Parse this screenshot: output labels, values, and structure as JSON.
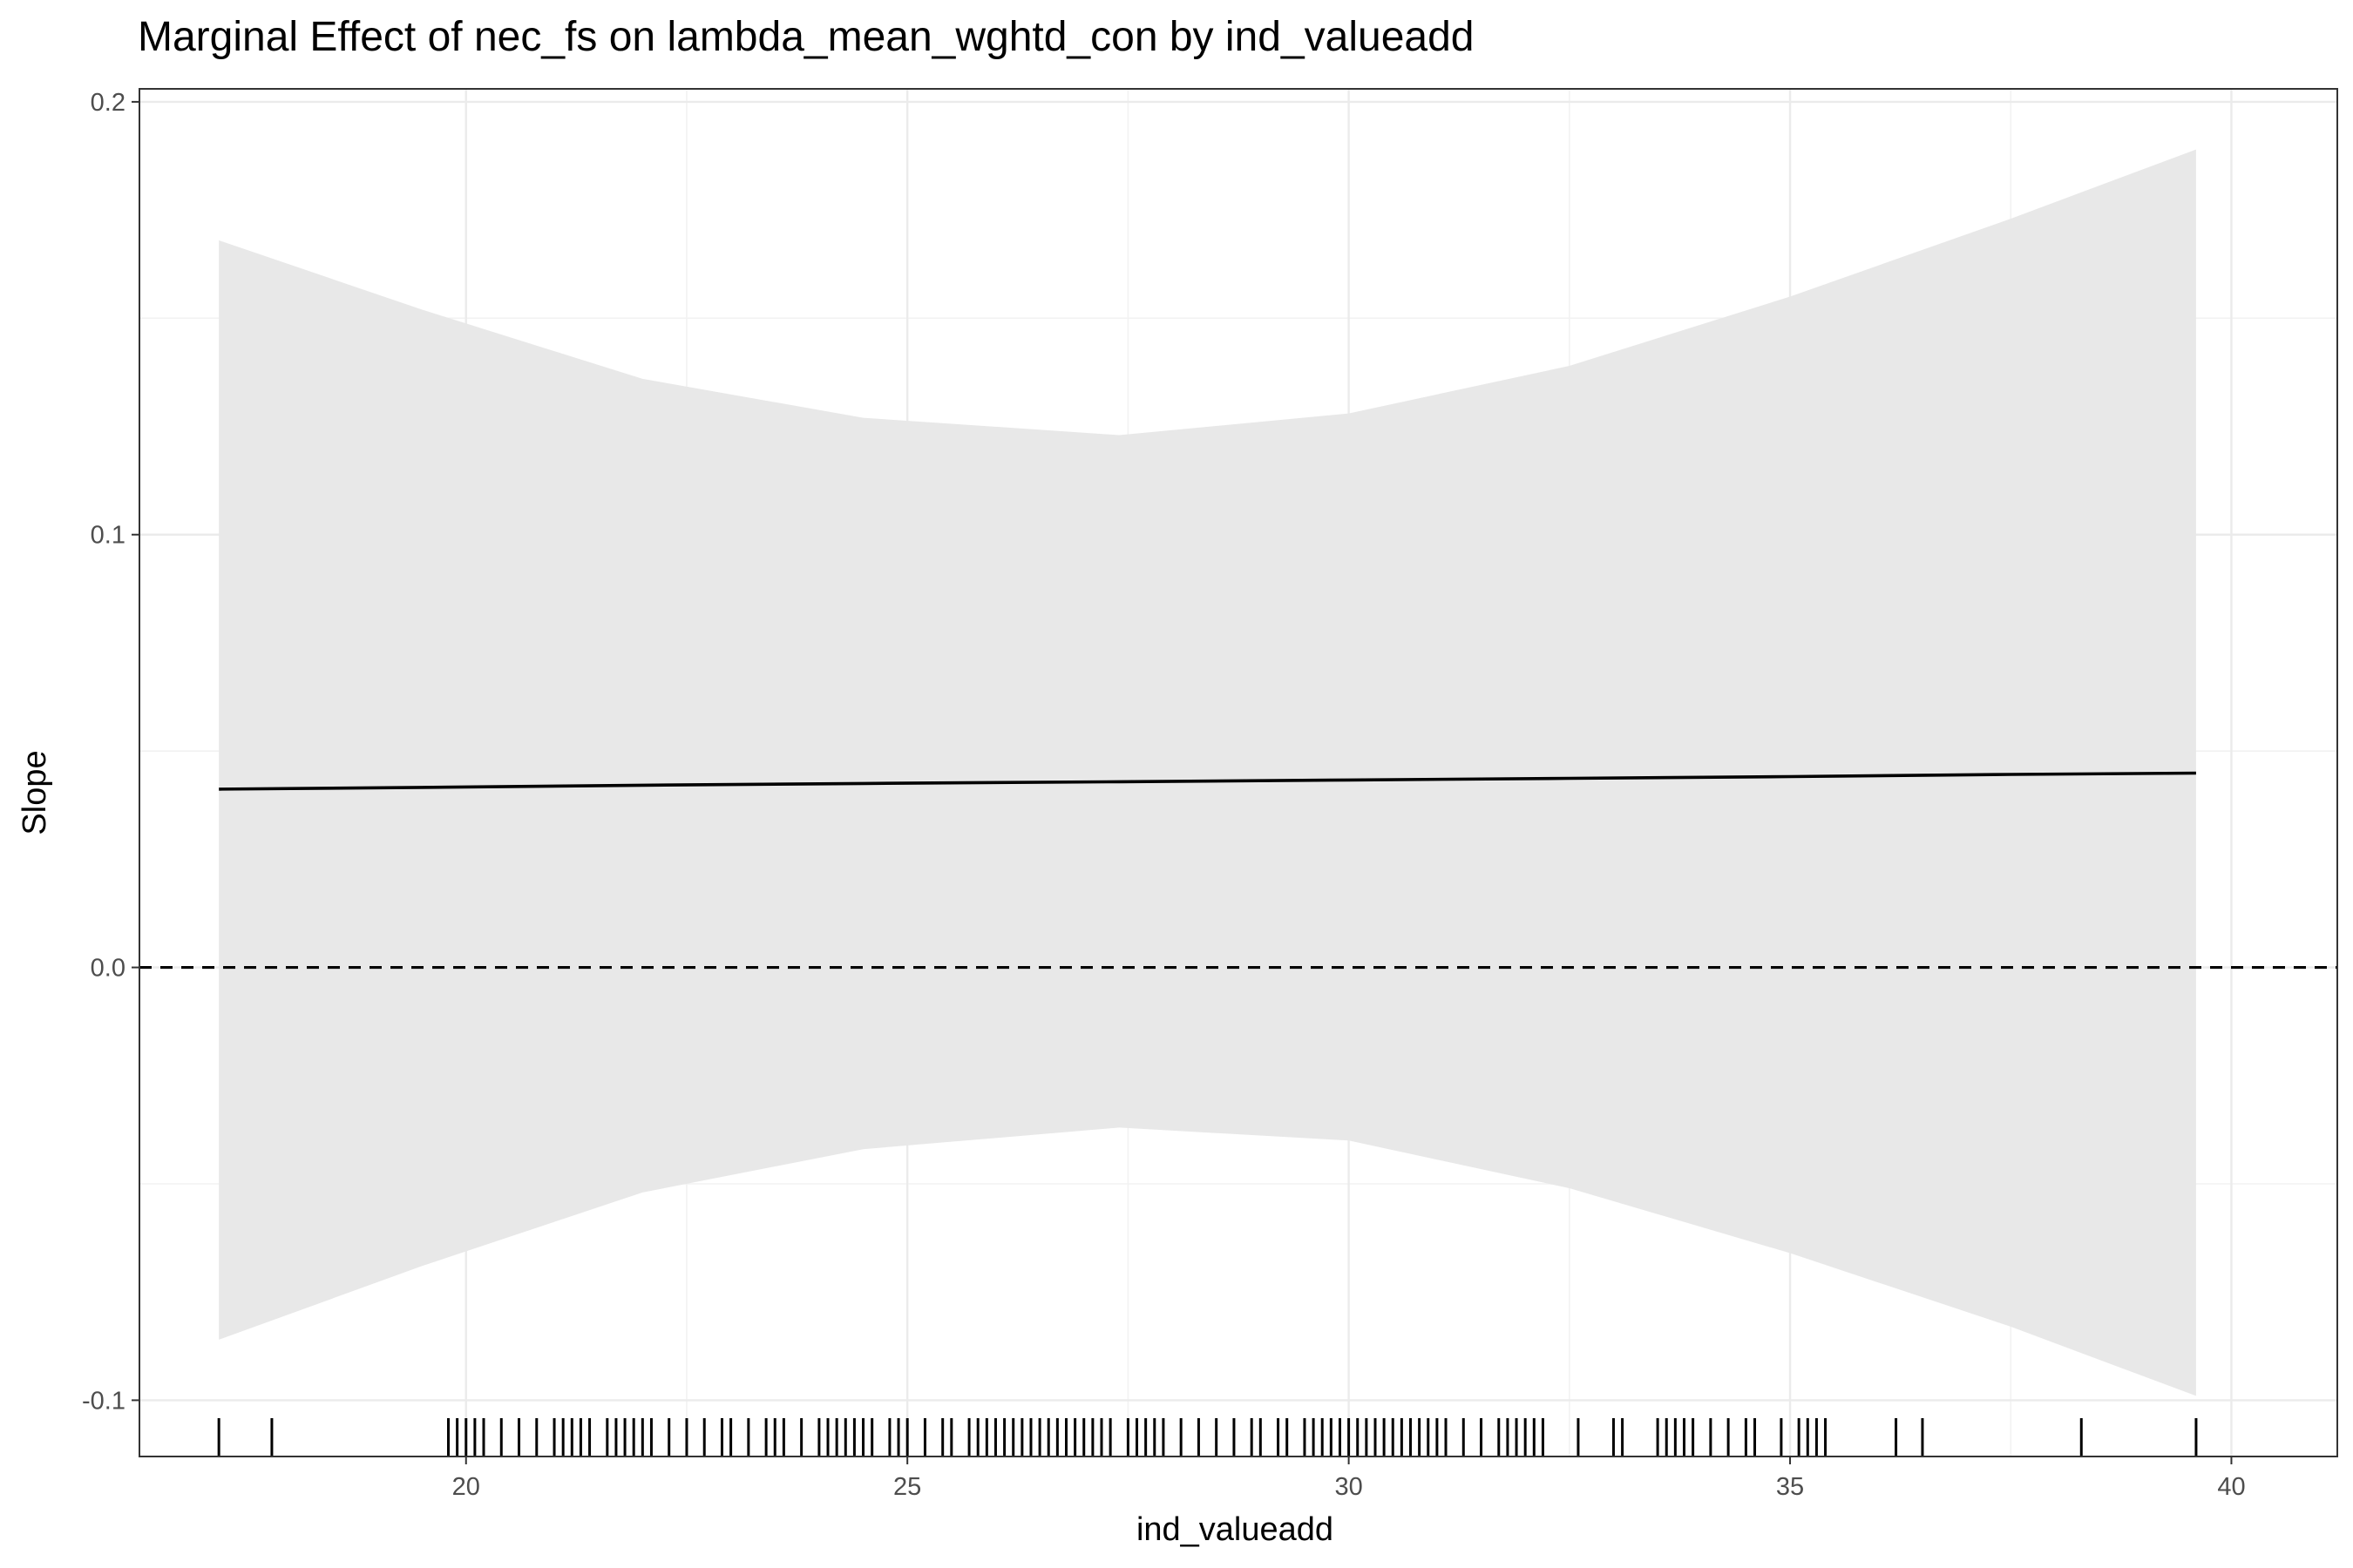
{
  "chart_data": {
    "type": "line",
    "title": "Marginal Effect of nec_fs on lambda_mean_wghtd_con by ind_valueadd",
    "xlabel": "ind_valueadd",
    "ylabel": "Slope",
    "xlim": [
      16.3,
      41.2
    ],
    "ylim": [
      -0.113,
      0.203
    ],
    "x_ticks": [
      20,
      25,
      30,
      35,
      40
    ],
    "x_tick_labels": [
      "20",
      "25",
      "30",
      "35",
      "40"
    ],
    "y_ticks": [
      -0.1,
      0.0,
      0.1,
      0.2
    ],
    "y_tick_labels": [
      "-0.1",
      "0.0",
      "0.1",
      "0.2"
    ],
    "grid": true,
    "reference_line": {
      "y": 0,
      "style": "dashed"
    },
    "series": [
      {
        "x": [
          17.2,
          19.5,
          22.0,
          24.5,
          27.4,
          30.0,
          32.5,
          35.0,
          37.5,
          39.6
        ],
        "y": [
          0.0412,
          0.0416,
          0.0421,
          0.0425,
          0.0429,
          0.0433,
          0.0437,
          0.0441,
          0.0446,
          0.0449
        ]
      }
    ],
    "confidence_band": {
      "x": [
        17.2,
        19.5,
        22.0,
        24.5,
        27.4,
        30.0,
        32.5,
        35.0,
        37.5,
        39.6
      ],
      "upper": [
        0.168,
        0.152,
        0.136,
        0.127,
        0.123,
        0.128,
        0.139,
        0.155,
        0.173,
        0.189
      ],
      "lower": [
        -0.086,
        -0.069,
        -0.052,
        -0.042,
        -0.037,
        -0.04,
        -0.051,
        -0.066,
        -0.083,
        -0.099
      ]
    },
    "rug": [
      17.2,
      17.8,
      19.8,
      19.9,
      20.0,
      20.1,
      20.2,
      20.4,
      20.6,
      20.8,
      21.0,
      21.1,
      21.2,
      21.3,
      21.4,
      21.6,
      21.7,
      21.8,
      21.9,
      22.0,
      22.1,
      22.3,
      22.5,
      22.7,
      22.9,
      23.0,
      23.2,
      23.4,
      23.5,
      23.6,
      23.8,
      24.0,
      24.1,
      24.2,
      24.3,
      24.4,
      24.5,
      24.6,
      24.8,
      24.9,
      25.0,
      25.2,
      25.4,
      25.5,
      25.7,
      25.8,
      25.9,
      26.0,
      26.1,
      26.2,
      26.3,
      26.4,
      26.5,
      26.6,
      26.7,
      26.8,
      26.9,
      27.0,
      27.1,
      27.2,
      27.3,
      27.5,
      27.6,
      27.7,
      27.8,
      27.9,
      28.1,
      28.3,
      28.5,
      28.7,
      28.9,
      29.0,
      29.2,
      29.3,
      29.5,
      29.6,
      29.7,
      29.8,
      29.9,
      30.0,
      30.1,
      30.2,
      30.3,
      30.4,
      30.5,
      30.6,
      30.7,
      30.8,
      30.9,
      31.0,
      31.1,
      31.3,
      31.5,
      31.7,
      31.8,
      31.9,
      32.0,
      32.1,
      32.2,
      32.6,
      33.0,
      33.1,
      33.5,
      33.6,
      33.7,
      33.8,
      33.9,
      34.1,
      34.3,
      34.5,
      34.6,
      34.9,
      35.1,
      35.2,
      35.3,
      35.4,
      36.2,
      36.5,
      38.3,
      39.6
    ]
  }
}
